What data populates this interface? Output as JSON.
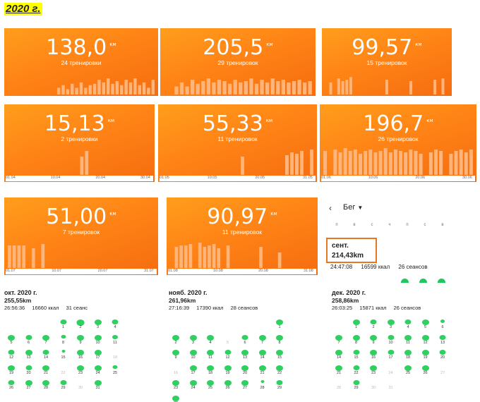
{
  "page_title": "2020 г.",
  "colors": {
    "card_orange": "#ff8416",
    "bar": "#ffb47a",
    "dot_green": "#2fcf60",
    "highlight_border": "#e87722"
  },
  "cards": [
    {
      "id": "jan",
      "value": "138,0",
      "unit": "км",
      "sub": "24 тренировки",
      "bars": [
        0,
        0,
        0,
        0,
        0,
        0,
        0,
        0,
        0,
        0,
        0,
        0.25,
        0.35,
        0.2,
        0.4,
        0.25,
        0.45,
        0.25,
        0.35,
        0.4,
        0.55,
        0.45,
        0.6,
        0.4,
        0.5,
        0.35,
        0.55,
        0.45,
        0.6,
        0.35,
        0.45,
        0.25,
        0.55
      ],
      "axis": []
    },
    {
      "id": "feb",
      "value": "205,5",
      "unit": "км",
      "sub": "29 тренировок",
      "bars": [
        0,
        0,
        0.3,
        0.45,
        0.3,
        0.55,
        0.4,
        0.5,
        0.6,
        0.45,
        0.55,
        0.5,
        0.4,
        0.55,
        0.45,
        0.5,
        0.6,
        0.4,
        0.55,
        0.45,
        0.6,
        0.5,
        0.55,
        0.45,
        0.5,
        0.55,
        0.45,
        0.5
      ],
      "axis": []
    },
    {
      "id": "mar",
      "value": "99,57",
      "unit": "км",
      "sub": "15 тренировок",
      "bars": [
        0,
        0.45,
        0,
        0.6,
        0.5,
        0.55,
        0.65,
        0,
        0,
        0,
        0,
        0,
        0,
        0,
        0,
        0.55,
        0,
        0,
        0,
        0,
        0,
        0.5,
        0,
        0,
        0,
        0,
        0,
        0.55,
        0,
        0.6,
        0
      ],
      "axis": []
    },
    {
      "id": "apr",
      "value": "15,13",
      "unit": "км",
      "sub": "2 тренировки",
      "bars": [
        0,
        0,
        0,
        0,
        0,
        0,
        0,
        0,
        0,
        0,
        0,
        0,
        0,
        0,
        0,
        0.65,
        0.85,
        0,
        0,
        0,
        0,
        0,
        0,
        0,
        0,
        0,
        0,
        0,
        0,
        0
      ],
      "axis": [
        "01.04",
        "10.04",
        "20.04",
        "30.04"
      ]
    },
    {
      "id": "may",
      "value": "55,33",
      "unit": "км",
      "sub": "11 тренировок",
      "bars": [
        0,
        0,
        0,
        0,
        0,
        0,
        0,
        0,
        0,
        0,
        0,
        0,
        0,
        0,
        0,
        0,
        0.65,
        0,
        0,
        0,
        0,
        0,
        0,
        0,
        0,
        0.7,
        0.8,
        0.75,
        0.85,
        0,
        0.9
      ],
      "axis": [
        "01.05",
        "10.05",
        "20.05",
        "31.05"
      ]
    },
    {
      "id": "jun",
      "value": "196,7",
      "unit": "км",
      "sub": "26 тренировок",
      "bars": [
        0.85,
        0,
        0.9,
        0.8,
        0.95,
        0.85,
        0.9,
        0.75,
        0.85,
        0.9,
        0.8,
        0.85,
        0.95,
        0.8,
        0.9,
        0.85,
        0.8,
        0.9,
        0.85,
        0.75,
        0,
        0.8,
        0.9,
        0.85,
        0,
        0.75,
        0.85,
        0.9,
        0.8,
        0.9
      ],
      "axis": [
        "01.06",
        "10.06",
        "20.06",
        "30.06"
      ]
    },
    {
      "id": "jul",
      "value": "51,00",
      "unit": "км",
      "sub": "7 тренировок",
      "bars": [
        0.8,
        0.8,
        0.8,
        0.8,
        0,
        0.7,
        0,
        0.85,
        0,
        0,
        0,
        0,
        0,
        0,
        0,
        0,
        0,
        0,
        0,
        0,
        0,
        0,
        0,
        0,
        0,
        0,
        0,
        0,
        0,
        0,
        0
      ],
      "axis": [
        "01.07",
        "10.07",
        "20.07",
        "31.07"
      ]
    },
    {
      "id": "aug",
      "value": "90,97",
      "unit": "км",
      "sub": "11 тренировок",
      "bars": [
        0,
        0.75,
        0.8,
        0.8,
        0.85,
        0,
        0.9,
        0.75,
        0.8,
        0.85,
        0.7,
        0,
        0.8,
        0,
        0,
        0,
        0,
        0,
        0,
        0.75,
        0,
        0,
        0,
        0.55,
        0,
        0,
        0,
        0,
        0,
        0,
        0
      ],
      "axis": [
        "01.08",
        "10.08",
        "20.08",
        "31.08"
      ]
    }
  ],
  "run_panel": {
    "back_icon": "back-arrow-icon",
    "mode": "Бег",
    "weekdays": [
      "п",
      "в",
      "с",
      "ч",
      "п",
      "с",
      "в"
    ],
    "month": "сент.",
    "distance": "214,43km",
    "time": "24:47:08",
    "kcal": "16599 ккал",
    "sessions": "26 сеансов"
  },
  "months": [
    {
      "id": "oct",
      "title": "окт. 2020 г.",
      "distance": "255,55km",
      "time": "26:56:36",
      "kcal": "16660 ккал",
      "sessions": "31 сеанс",
      "start_col": 3,
      "days": 31,
      "dot_sizes": {
        "1": 9,
        "2": 11,
        "3": 10,
        "4": 9,
        "5": 10,
        "6": 9,
        "7": 10,
        "8": 7,
        "9": 10,
        "10": 10,
        "11": 8,
        "12": 9,
        "13": 10,
        "14": 9,
        "15": 5,
        "16": 10,
        "17": 10,
        "18": 0,
        "19": 10,
        "20": 9,
        "21": 10,
        "22": 0,
        "23": 10,
        "24": 10,
        "25": 7,
        "26": 9,
        "27": 10,
        "28": 10,
        "29": 9,
        "30": 0,
        "31": 10
      }
    },
    {
      "id": "nov",
      "title": "нояб. 2020 г.",
      "distance": "261,96km",
      "time": "27:16:39",
      "kcal": "17390 ккал",
      "sessions": "28 сеансов",
      "start_col": 6,
      "days": 30,
      "dot_sizes": {
        "1": 10,
        "2": 10,
        "3": 10,
        "4": 10,
        "5": 0,
        "6": 9,
        "7": 10,
        "8": 10,
        "9": 10,
        "10": 10,
        "11": 10,
        "12": 9,
        "13": 10,
        "14": 10,
        "15": 10,
        "16": 0,
        "17": 10,
        "18": 10,
        "19": 10,
        "20": 10,
        "21": 10,
        "22": 10,
        "23": 10,
        "24": 10,
        "25": 10,
        "26": 10,
        "27": 10,
        "28": 5,
        "29": 9,
        "30": 10
      }
    },
    {
      "id": "dec",
      "title": "дек. 2020 г.",
      "distance": "258,86km",
      "time": "26:03:25",
      "kcal": "15871 ккал",
      "sessions": "26 сеансов",
      "start_col": 1,
      "days": 31,
      "dot_sizes": {
        "1": 10,
        "2": 9,
        "3": 10,
        "4": 9,
        "5": 10,
        "6": 6,
        "7": 10,
        "8": 10,
        "9": 10,
        "10": 9,
        "11": 10,
        "12": 10,
        "13": 9,
        "14": 10,
        "15": 9,
        "16": 10,
        "17": 9,
        "18": 10,
        "19": 10,
        "20": 9,
        "21": 10,
        "22": 9,
        "23": 10,
        "24": 0,
        "25": 10,
        "26": 10,
        "27": 0,
        "28": 0,
        "29": 9,
        "30": 0,
        "31": 0
      }
    }
  ]
}
